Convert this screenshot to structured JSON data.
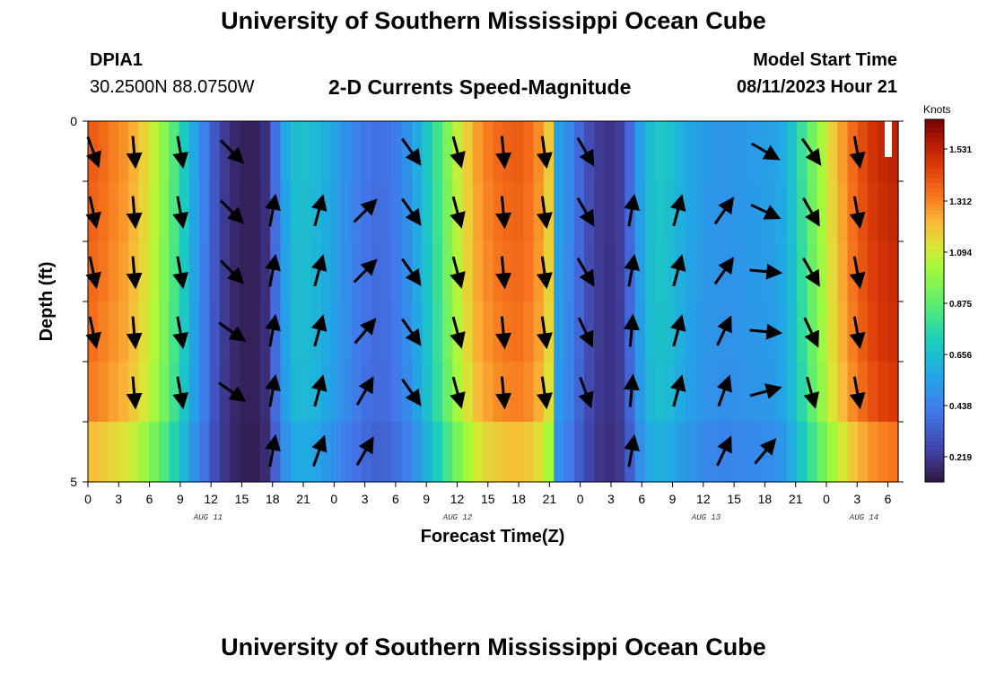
{
  "header": {
    "title": "University of Southern Mississippi Ocean Cube",
    "station": "DPIA1",
    "coords": "30.2500N  88.0750W",
    "subtitle": "2-D Currents Speed-Magnitude",
    "model_start_label": "Model Start Time",
    "model_start_value": "08/11/2023 Hour 21"
  },
  "footer": {
    "title": "University of Southern Mississippi Ocean Cube"
  },
  "colorscale": {
    "label": "Knots",
    "ticks": [
      "1.531",
      "1.312",
      "1.094",
      "0.875",
      "0.656",
      "0.438",
      "0.219"
    ]
  },
  "chart_data": {
    "type": "heatmap",
    "title": "2-D Currents Speed-Magnitude",
    "xlabel": "Forecast Time(Z)",
    "ylabel": "Depth (ft)",
    "x_hours": [
      0,
      1,
      2,
      3,
      4,
      5,
      6,
      7,
      8,
      9,
      10,
      11,
      12,
      13,
      14,
      15,
      16,
      17,
      18,
      19,
      20,
      21,
      22,
      23,
      24,
      25,
      26,
      27,
      28,
      29,
      30,
      31,
      32,
      33,
      34,
      35,
      36,
      37,
      38,
      39,
      40,
      41,
      42,
      43,
      44,
      45,
      46,
      47,
      48,
      49,
      50,
      51,
      52,
      53,
      54,
      55,
      56,
      57,
      58,
      59,
      60,
      61,
      62,
      63,
      64,
      65,
      66,
      67,
      68,
      69,
      70,
      71,
      72,
      73,
      74,
      75,
      76,
      77,
      78,
      79
    ],
    "x_tick_labels": [
      "0",
      "3",
      "6",
      "9",
      "12",
      "15",
      "18",
      "21",
      "0",
      "3",
      "6",
      "9",
      "12",
      "15",
      "18",
      "21",
      "0",
      "3",
      "6",
      "9",
      "12",
      "15",
      "18",
      "21",
      "0",
      "3",
      "6"
    ],
    "date_labels": [
      "AUG 11",
      "AUG 12",
      "AUG 13",
      "AUG 14"
    ],
    "y_tick_labels": [
      "0",
      "5"
    ],
    "ylim": [
      0,
      5
    ],
    "clim": [
      0.0,
      1.75
    ],
    "speed_profile_knots": [
      1.45,
      1.42,
      1.38,
      1.34,
      1.28,
      1.2,
      1.1,
      0.98,
      0.84,
      0.68,
      0.52,
      0.38,
      0.24,
      0.14,
      0.08,
      0.05,
      0.05,
      0.1,
      0.32,
      0.52,
      0.62,
      0.63,
      0.6,
      0.55,
      0.5,
      0.44,
      0.38,
      0.34,
      0.32,
      0.33,
      0.37,
      0.44,
      0.54,
      0.66,
      0.8,
      0.95,
      1.1,
      1.22,
      1.32,
      1.38,
      1.42,
      1.44,
      1.45,
      1.42,
      1.35,
      1.22,
      0.5,
      0.42,
      0.3,
      0.2,
      0.14,
      0.12,
      0.15,
      0.3,
      0.5,
      0.62,
      0.66,
      0.63,
      0.57,
      0.52,
      0.49,
      0.47,
      0.46,
      0.46,
      0.47,
      0.48,
      0.49,
      0.5,
      0.54,
      0.64,
      0.78,
      0.92,
      1.06,
      1.2,
      1.32,
      1.42,
      1.5,
      1.56,
      1.6,
      1.62
    ],
    "depth_speed_factors": [
      1.0,
      0.99,
      0.98,
      0.97,
      0.95,
      0.86
    ],
    "vectors": [
      {
        "hour": 0.5,
        "angle_deg": [
          160,
          168,
          168,
          168,
          null,
          null
        ]
      },
      {
        "hour": 4.5,
        "angle_deg": [
          175,
          175,
          175,
          175,
          175,
          null
        ]
      },
      {
        "hour": 9,
        "angle_deg": [
          170,
          170,
          170,
          170,
          170,
          null
        ]
      },
      {
        "hour": 14,
        "angle_deg": [
          135,
          135,
          135,
          125,
          125,
          null
        ]
      },
      {
        "hour": 18,
        "angle_deg": [
          null,
          10,
          10,
          10,
          10,
          10
        ]
      },
      {
        "hour": 22.5,
        "angle_deg": [
          null,
          15,
          15,
          15,
          15,
          20
        ]
      },
      {
        "hour": 27,
        "angle_deg": [
          null,
          45,
          45,
          40,
          30,
          30
        ]
      },
      {
        "hour": 31.5,
        "angle_deg": [
          145,
          145,
          145,
          145,
          145,
          null
        ]
      },
      {
        "hour": 36,
        "angle_deg": [
          165,
          165,
          165,
          165,
          165,
          null
        ]
      },
      {
        "hour": 40.5,
        "angle_deg": [
          175,
          175,
          175,
          175,
          175,
          null
        ]
      },
      {
        "hour": 44.5,
        "angle_deg": [
          172,
          172,
          172,
          172,
          172,
          null
        ]
      },
      {
        "hour": 48.5,
        "angle_deg": [
          150,
          150,
          150,
          155,
          160,
          null
        ]
      },
      {
        "hour": 53,
        "angle_deg": [
          null,
          10,
          10,
          5,
          5,
          10
        ]
      },
      {
        "hour": 57.5,
        "angle_deg": [
          null,
          15,
          15,
          15,
          15,
          null
        ]
      },
      {
        "hour": 62,
        "angle_deg": [
          null,
          35,
          35,
          25,
          20,
          25
        ]
      },
      {
        "hour": 66,
        "angle_deg": [
          120,
          115,
          95,
          95,
          75,
          40
        ]
      },
      {
        "hour": 70.5,
        "angle_deg": [
          145,
          150,
          150,
          155,
          165,
          null
        ]
      },
      {
        "hour": 75,
        "angle_deg": [
          170,
          170,
          170,
          170,
          170,
          null
        ]
      }
    ]
  }
}
